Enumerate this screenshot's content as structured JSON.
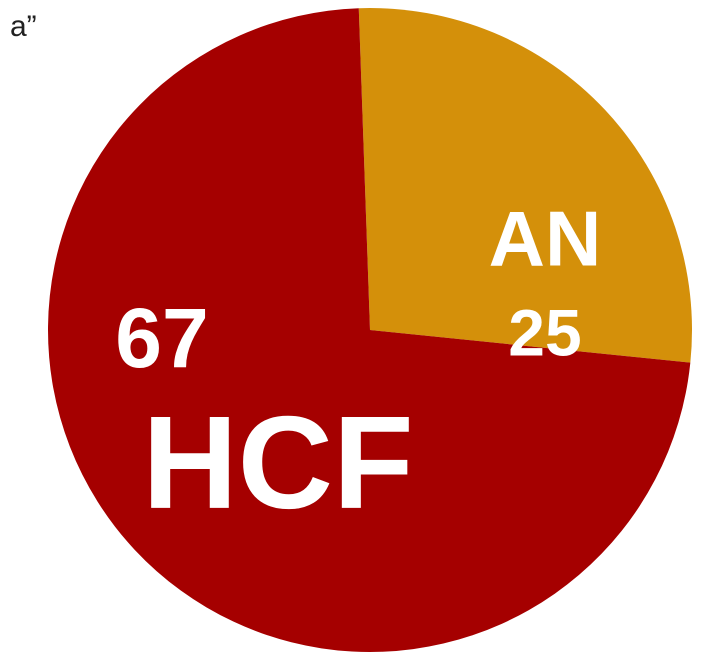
{
  "chart_data": {
    "type": "pie",
    "annotation": "a”",
    "categories": [
      "HCF",
      "AN"
    ],
    "values": [
      67,
      25
    ],
    "colors": [
      "#a50000",
      "#d4900a"
    ]
  }
}
